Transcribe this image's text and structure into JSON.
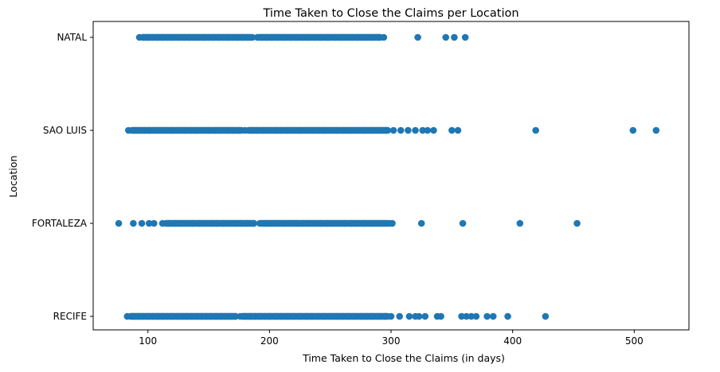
{
  "chart_data": {
    "type": "scatter",
    "title": "Time Taken to Close the Claims per Location",
    "xlabel": "Time Taken to Close the Claims (in days)",
    "ylabel": "Location",
    "categories": [
      "RECIFE",
      "FORTALEZA",
      "SAO LUIS",
      "NATAL"
    ],
    "xlim": [
      55,
      545
    ],
    "x_ticks": [
      100,
      200,
      300,
      400,
      500
    ],
    "grid": false,
    "marker_color": "#1f77b4",
    "points": {
      "NATAL": {
        "dense_ranges": [
          [
            93,
            188
          ],
          [
            188,
            294
          ]
        ],
        "values": [
          93,
          96,
          100,
          104,
          108,
          112,
          116,
          120,
          125,
          130,
          134,
          138,
          142,
          146,
          150,
          154,
          158,
          162,
          166,
          170,
          174,
          178,
          182,
          186,
          190,
          194,
          198,
          202,
          207,
          212,
          217,
          222,
          227,
          232,
          237,
          242,
          248,
          254,
          258,
          260,
          264,
          268,
          272,
          276,
          280,
          285,
          290,
          294,
          322,
          345,
          352,
          361
        ]
      },
      "SAO LUIS": {
        "dense_ranges": [
          [
            84,
            180
          ],
          [
            180,
            300
          ]
        ],
        "values": [
          84,
          89,
          93,
          97,
          101,
          105,
          110,
          115,
          120,
          125,
          130,
          135,
          140,
          145,
          150,
          155,
          160,
          165,
          170,
          175,
          180,
          185,
          190,
          195,
          200,
          205,
          210,
          215,
          220,
          225,
          230,
          235,
          240,
          245,
          250,
          255,
          260,
          266,
          272,
          278,
          284,
          290,
          296,
          302,
          308,
          314,
          320,
          326,
          330,
          335,
          350,
          355,
          419,
          499,
          518
        ]
      },
      "FORTALEZA": {
        "dense_ranges": [
          [
            112,
            190
          ],
          [
            190,
            300
          ]
        ],
        "values": [
          76,
          88,
          95,
          101,
          105,
          112,
          117,
          122,
          127,
          132,
          137,
          142,
          147,
          152,
          157,
          162,
          167,
          172,
          177,
          182,
          187,
          192,
          197,
          202,
          207,
          212,
          217,
          222,
          227,
          232,
          237,
          242,
          247,
          252,
          257,
          262,
          267,
          272,
          278,
          284,
          292,
          299,
          301,
          325,
          359,
          406,
          453
        ]
      },
      "RECIFE": {
        "dense_ranges": [
          [
            83,
            175
          ],
          [
            175,
            300
          ]
        ],
        "values": [
          83,
          88,
          92,
          96,
          100,
          104,
          108,
          112,
          116,
          120,
          124,
          128,
          132,
          136,
          140,
          144,
          148,
          152,
          156,
          160,
          164,
          168,
          172,
          176,
          180,
          184,
          188,
          192,
          196,
          200,
          205,
          210,
          215,
          220,
          225,
          230,
          235,
          240,
          245,
          250,
          255,
          260,
          265,
          270,
          275,
          280,
          285,
          290,
          295,
          300,
          307,
          315,
          320,
          323,
          328,
          338,
          341,
          358,
          362,
          366,
          370,
          379,
          384,
          396,
          427
        ]
      }
    }
  }
}
